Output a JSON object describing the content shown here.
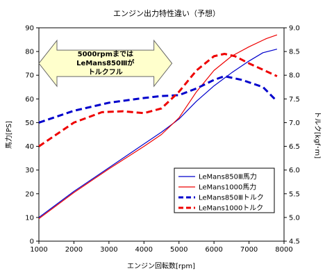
{
  "chart_data": {
    "type": "line",
    "title": "エンジン出力特性違い（予想）",
    "xlabel": "エンジン回転数[rpm]",
    "ylabel_left": "馬力[PS]",
    "ylabel_right": "トルク[kgf･m]",
    "xlim": [
      1000,
      8000
    ],
    "ylim_left": [
      0,
      90
    ],
    "ylim_right": [
      4.5,
      9.0
    ],
    "x_ticks": [
      "1000",
      "2000",
      "3000",
      "4000",
      "5000",
      "6000",
      "7000",
      "8000"
    ],
    "y_left_ticks": [
      "0",
      "10",
      "20",
      "30",
      "40",
      "50",
      "60",
      "70",
      "80",
      "90"
    ],
    "y_right_ticks": [
      "4.5",
      "5.0",
      "5.5",
      "6.0",
      "6.5",
      "7.0",
      "7.5",
      "8.0",
      "8.5",
      "9.0"
    ],
    "grid": false,
    "legend_position": "bottom-right",
    "annotation": {
      "lines": [
        "5000rpmまでは",
        "LeMans850Ⅲが",
        "トルクフル"
      ],
      "x_range": [
        1000,
        4800
      ],
      "y_center": 75,
      "fill": "#ffffcc"
    },
    "series": [
      {
        "name": "LeMans850Ⅲ馬力",
        "axis": "left",
        "color": "#0000cc",
        "style": "solid",
        "x": [
          1000,
          2000,
          3000,
          4000,
          4500,
          5000,
          5500,
          6000,
          6500,
          7000,
          7400,
          7800
        ],
        "y": [
          10,
          21,
          31,
          41,
          46,
          51.5,
          59,
          65.5,
          71,
          76,
          79.5,
          81
        ]
      },
      {
        "name": "LeMans1000馬力",
        "axis": "left",
        "color": "#ee0000",
        "style": "solid",
        "x": [
          1000,
          2000,
          3000,
          4000,
          4500,
          5000,
          5500,
          6000,
          6500,
          7000,
          7500,
          7800
        ],
        "y": [
          9.5,
          20.5,
          30.5,
          40,
          45,
          52,
          63,
          72,
          78,
          82,
          85.5,
          87
        ]
      },
      {
        "name": "LeMans850Ⅲトルク",
        "axis": "right",
        "color": "#0000cc",
        "style": "dashed",
        "x": [
          1000,
          2000,
          3000,
          4000,
          4500,
          5000,
          5500,
          6000,
          6300,
          6800,
          7400,
          7800
        ],
        "y": [
          7.0,
          7.25,
          7.42,
          7.52,
          7.56,
          7.58,
          7.72,
          7.9,
          7.98,
          7.9,
          7.75,
          7.45
        ]
      },
      {
        "name": "LeMans1000トルク",
        "axis": "right",
        "color": "#ee0000",
        "style": "dashed",
        "x": [
          1000,
          2000,
          2800,
          3400,
          4000,
          4500,
          5000,
          5500,
          6000,
          6300,
          6600,
          7000,
          7800
        ],
        "y": [
          6.5,
          7.0,
          7.22,
          7.24,
          7.2,
          7.3,
          7.65,
          8.1,
          8.4,
          8.45,
          8.4,
          8.25,
          7.98
        ]
      }
    ]
  }
}
